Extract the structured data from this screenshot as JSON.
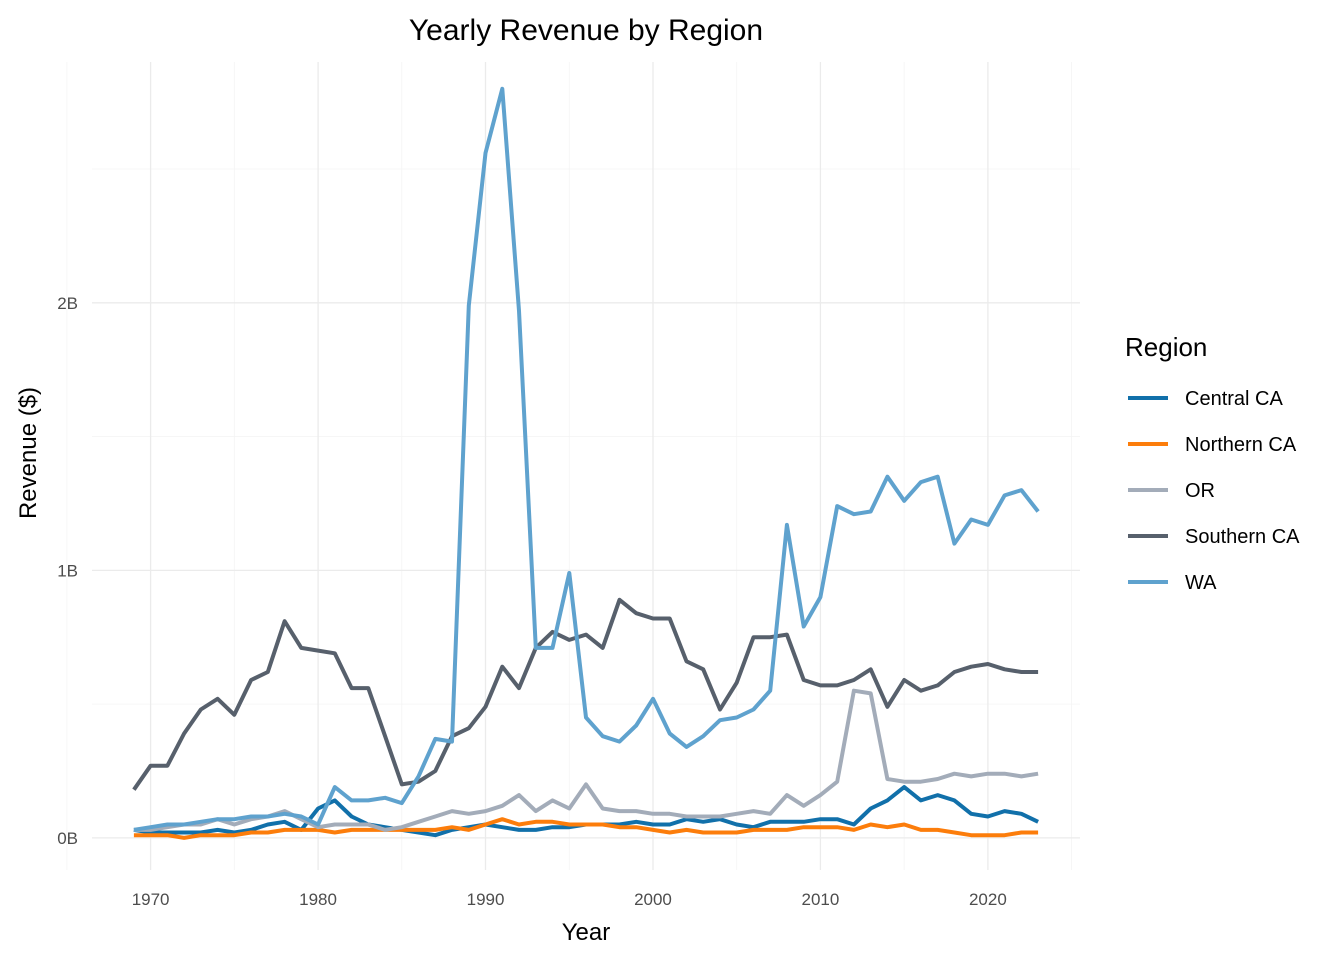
{
  "chart_data": {
    "type": "line",
    "title": "Yearly Revenue by Region",
    "xlabel": "Year",
    "ylabel": "Revenue ($)",
    "xlim": [
      1966.5,
      2025.5
    ],
    "ylim": [
      -0.12,
      2.9
    ],
    "y_unit": "billions",
    "x_ticks": [
      1970,
      1980,
      1990,
      2000,
      2010,
      2020
    ],
    "x_tick_labels": [
      "1970",
      "1980",
      "1990",
      "2000",
      "2010",
      "2020"
    ],
    "y_ticks": [
      0,
      1,
      2
    ],
    "y_tick_labels": [
      "0B",
      "1B",
      "2B"
    ],
    "grid": true,
    "legend": {
      "title": "Region",
      "position": "right"
    },
    "x": [
      1969,
      1970,
      1971,
      1972,
      1973,
      1974,
      1975,
      1976,
      1977,
      1978,
      1979,
      1980,
      1981,
      1982,
      1983,
      1984,
      1985,
      1986,
      1987,
      1988,
      1989,
      1990,
      1991,
      1992,
      1993,
      1994,
      1995,
      1996,
      1997,
      1998,
      1999,
      2000,
      2001,
      2002,
      2003,
      2004,
      2005,
      2006,
      2007,
      2008,
      2009,
      2010,
      2011,
      2012,
      2013,
      2014,
      2015,
      2016,
      2017,
      2018,
      2019,
      2020,
      2021,
      2022,
      2023
    ],
    "series": [
      {
        "name": "Central CA",
        "color": "#1170aa",
        "values": [
          0.03,
          0.02,
          0.02,
          0.02,
          0.02,
          0.03,
          0.02,
          0.03,
          0.05,
          0.06,
          0.03,
          0.11,
          0.14,
          0.08,
          0.05,
          0.04,
          0.03,
          0.02,
          0.01,
          0.03,
          0.04,
          0.05,
          0.04,
          0.03,
          0.03,
          0.04,
          0.04,
          0.05,
          0.05,
          0.05,
          0.06,
          0.05,
          0.05,
          0.07,
          0.06,
          0.07,
          0.05,
          0.04,
          0.06,
          0.06,
          0.06,
          0.07,
          0.07,
          0.05,
          0.11,
          0.14,
          0.19,
          0.14,
          0.16,
          0.14,
          0.09,
          0.08,
          0.1,
          0.09,
          0.06
        ]
      },
      {
        "name": "Northern CA",
        "color": "#fc7d0b",
        "values": [
          0.01,
          0.01,
          0.01,
          0.0,
          0.01,
          0.01,
          0.01,
          0.02,
          0.02,
          0.03,
          0.03,
          0.03,
          0.02,
          0.03,
          0.03,
          0.03,
          0.03,
          0.03,
          0.03,
          0.04,
          0.03,
          0.05,
          0.07,
          0.05,
          0.06,
          0.06,
          0.05,
          0.05,
          0.05,
          0.04,
          0.04,
          0.03,
          0.02,
          0.03,
          0.02,
          0.02,
          0.02,
          0.03,
          0.03,
          0.03,
          0.04,
          0.04,
          0.04,
          0.03,
          0.05,
          0.04,
          0.05,
          0.03,
          0.03,
          0.02,
          0.01,
          0.01,
          0.01,
          0.02,
          0.02
        ]
      },
      {
        "name": "OR",
        "color": "#a3acb9",
        "values": [
          0.03,
          0.03,
          0.04,
          0.05,
          0.05,
          0.07,
          0.05,
          0.07,
          0.08,
          0.1,
          0.07,
          0.04,
          0.05,
          0.05,
          0.05,
          0.03,
          0.04,
          0.06,
          0.08,
          0.1,
          0.09,
          0.1,
          0.12,
          0.16,
          0.1,
          0.14,
          0.11,
          0.2,
          0.11,
          0.1,
          0.1,
          0.09,
          0.09,
          0.08,
          0.08,
          0.08,
          0.09,
          0.1,
          0.09,
          0.16,
          0.12,
          0.16,
          0.21,
          0.55,
          0.54,
          0.22,
          0.21,
          0.21,
          0.22,
          0.24,
          0.23,
          0.24,
          0.24,
          0.23,
          0.24
        ]
      },
      {
        "name": "Southern CA",
        "color": "#57606c",
        "values": [
          0.18,
          0.27,
          0.27,
          0.39,
          0.48,
          0.52,
          0.46,
          0.59,
          0.62,
          0.81,
          0.71,
          0.7,
          0.69,
          0.56,
          0.56,
          0.38,
          0.2,
          0.21,
          0.25,
          0.38,
          0.41,
          0.49,
          0.64,
          0.56,
          0.71,
          0.77,
          0.74,
          0.76,
          0.71,
          0.89,
          0.84,
          0.82,
          0.82,
          0.66,
          0.63,
          0.48,
          0.58,
          0.75,
          0.75,
          0.76,
          0.59,
          0.57,
          0.57,
          0.59,
          0.63,
          0.49,
          0.59,
          0.55,
          0.57,
          0.62,
          0.64,
          0.65,
          0.63,
          0.62,
          0.62
        ]
      },
      {
        "name": "WA",
        "color": "#5fa2ce",
        "values": [
          0.03,
          0.04,
          0.05,
          0.05,
          0.06,
          0.07,
          0.07,
          0.08,
          0.08,
          0.09,
          0.08,
          0.05,
          0.19,
          0.14,
          0.14,
          0.15,
          0.13,
          0.23,
          0.37,
          0.36,
          1.99,
          2.56,
          2.8,
          1.97,
          0.71,
          0.71,
          0.99,
          0.45,
          0.38,
          0.36,
          0.42,
          0.52,
          0.39,
          0.34,
          0.38,
          0.44,
          0.45,
          0.48,
          0.55,
          1.17,
          0.79,
          0.9,
          1.24,
          1.21,
          1.22,
          1.35,
          1.26,
          1.33,
          1.35,
          1.1,
          1.19,
          1.17,
          1.28,
          1.3,
          1.22
        ]
      }
    ]
  }
}
